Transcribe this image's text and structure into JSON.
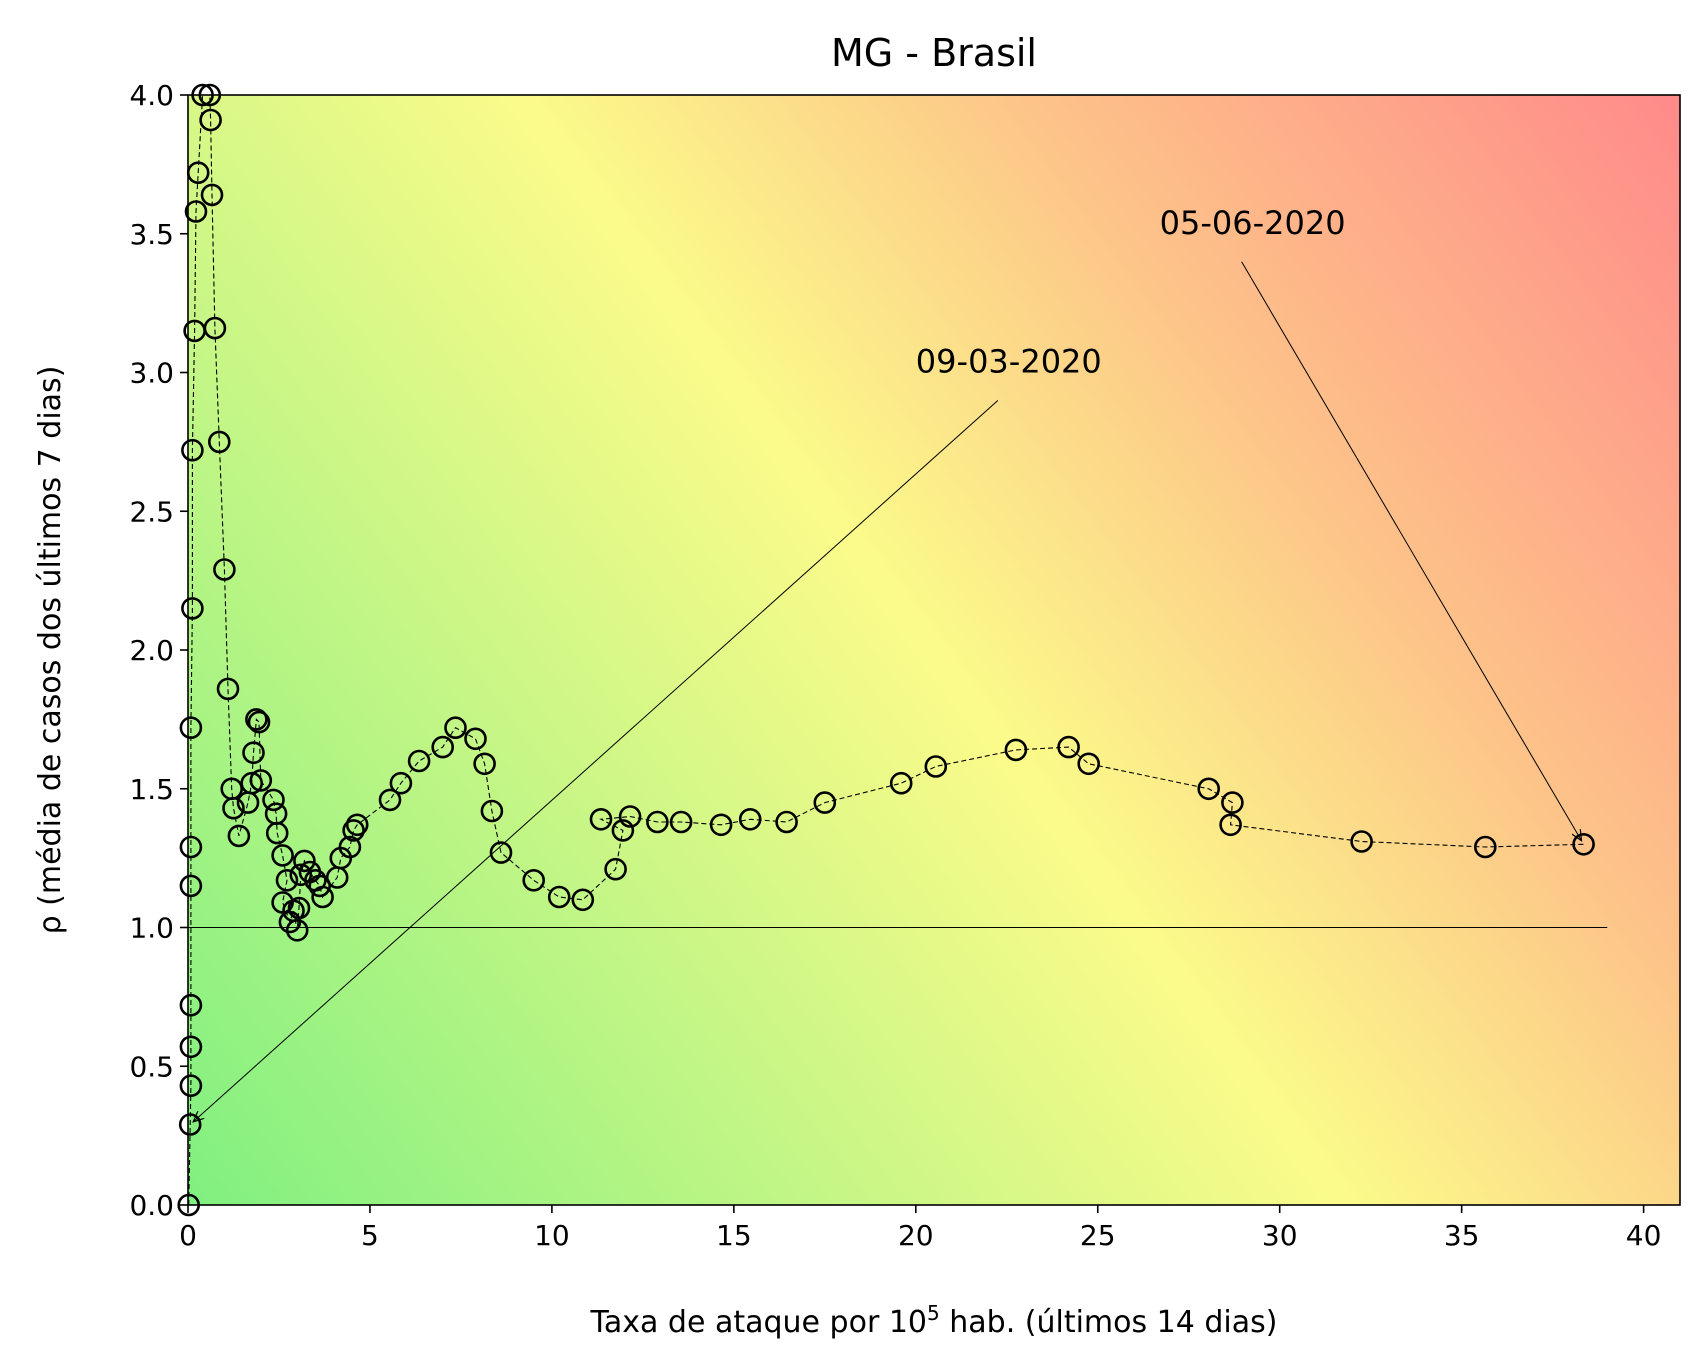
{
  "chart_data": {
    "type": "scatter",
    "title": "MG - Brasil",
    "xlabel": {
      "pre": "Taxa de ataque por 10",
      "sup": "5",
      "post": " hab. (últimos 14 dias)"
    },
    "ylabel": "ρ (média de casos dos últimos 7 dias)",
    "xlim": [
      0,
      41
    ],
    "ylim": [
      0,
      4
    ],
    "xticks": [
      0,
      5,
      10,
      15,
      20,
      25,
      30,
      35,
      40
    ],
    "yticks": [
      0.0,
      0.5,
      1.0,
      1.5,
      2.0,
      2.5,
      3.0,
      3.5,
      4.0
    ],
    "grid": false,
    "reference_line": {
      "y": 1.0,
      "x_from": 0,
      "x_to": 39
    },
    "colors": {
      "green": "#80f080",
      "yellow": "#fbfb8a",
      "orange": "#fdc389",
      "red": "#ff8a8a",
      "marker_edge": "#000000"
    },
    "series": [
      {
        "points": [
          [
            0.02,
            0.0
          ],
          [
            0.06,
            0.29
          ],
          [
            0.08,
            0.43
          ],
          [
            0.08,
            0.57
          ],
          [
            0.08,
            0.72
          ],
          [
            0.08,
            1.15
          ],
          [
            0.08,
            1.29
          ],
          [
            0.08,
            1.72
          ],
          [
            0.12,
            2.15
          ],
          [
            0.12,
            2.72
          ],
          [
            0.18,
            3.15
          ],
          [
            0.22,
            3.58
          ],
          [
            0.28,
            3.72
          ],
          [
            0.4,
            4.0
          ],
          [
            0.6,
            4.0
          ],
          [
            0.62,
            3.91
          ],
          [
            0.66,
            3.64
          ],
          [
            0.74,
            3.16
          ],
          [
            0.86,
            2.75
          ],
          [
            1.0,
            2.29
          ],
          [
            1.1,
            1.86
          ],
          [
            1.2,
            1.5
          ],
          [
            1.25,
            1.43
          ],
          [
            1.4,
            1.33
          ],
          [
            1.65,
            1.45
          ],
          [
            1.75,
            1.52
          ],
          [
            1.8,
            1.63
          ],
          [
            1.88,
            1.75
          ],
          [
            1.95,
            1.74
          ],
          [
            2.0,
            1.53
          ],
          [
            2.35,
            1.46
          ],
          [
            2.42,
            1.41
          ],
          [
            2.45,
            1.34
          ],
          [
            2.6,
            1.26
          ],
          [
            2.72,
            1.17
          ],
          [
            2.6,
            1.09
          ],
          [
            2.8,
            1.02
          ],
          [
            2.9,
            1.06
          ],
          [
            3.0,
            0.99
          ],
          [
            3.05,
            1.07
          ],
          [
            3.1,
            1.19
          ],
          [
            3.2,
            1.24
          ],
          [
            3.35,
            1.2
          ],
          [
            3.5,
            1.17
          ],
          [
            3.62,
            1.15
          ],
          [
            3.7,
            1.11
          ],
          [
            4.1,
            1.18
          ],
          [
            4.2,
            1.25
          ],
          [
            4.45,
            1.29
          ],
          [
            4.55,
            1.35
          ],
          [
            4.65,
            1.37
          ],
          [
            5.55,
            1.46
          ],
          [
            5.85,
            1.52
          ],
          [
            6.35,
            1.6
          ],
          [
            7.0,
            1.65
          ],
          [
            7.35,
            1.72
          ],
          [
            7.9,
            1.68
          ],
          [
            8.15,
            1.59
          ],
          [
            8.35,
            1.42
          ],
          [
            8.6,
            1.27
          ],
          [
            9.5,
            1.17
          ],
          [
            10.2,
            1.11
          ],
          [
            10.85,
            1.1
          ],
          [
            11.75,
            1.21
          ],
          [
            11.95,
            1.35
          ],
          [
            11.35,
            1.39
          ],
          [
            12.15,
            1.4
          ],
          [
            12.9,
            1.38
          ],
          [
            13.55,
            1.38
          ],
          [
            14.65,
            1.37
          ],
          [
            15.45,
            1.39
          ],
          [
            16.45,
            1.38
          ],
          [
            17.5,
            1.45
          ],
          [
            19.6,
            1.52
          ],
          [
            20.55,
            1.58
          ],
          [
            22.75,
            1.64
          ],
          [
            24.2,
            1.65
          ],
          [
            24.75,
            1.59
          ],
          [
            28.05,
            1.5
          ],
          [
            28.7,
            1.45
          ],
          [
            28.65,
            1.37
          ],
          [
            32.25,
            1.31
          ],
          [
            35.65,
            1.29
          ],
          [
            38.35,
            1.3
          ]
        ]
      }
    ],
    "annotations": [
      {
        "text": "09-03-2020",
        "xy": [
          0.06,
          0.29
        ],
        "xytext": [
          20.0,
          3.0
        ]
      },
      {
        "text": "05-06-2020",
        "xy": [
          38.35,
          1.3
        ],
        "xytext": [
          26.7,
          3.5
        ]
      }
    ]
  }
}
